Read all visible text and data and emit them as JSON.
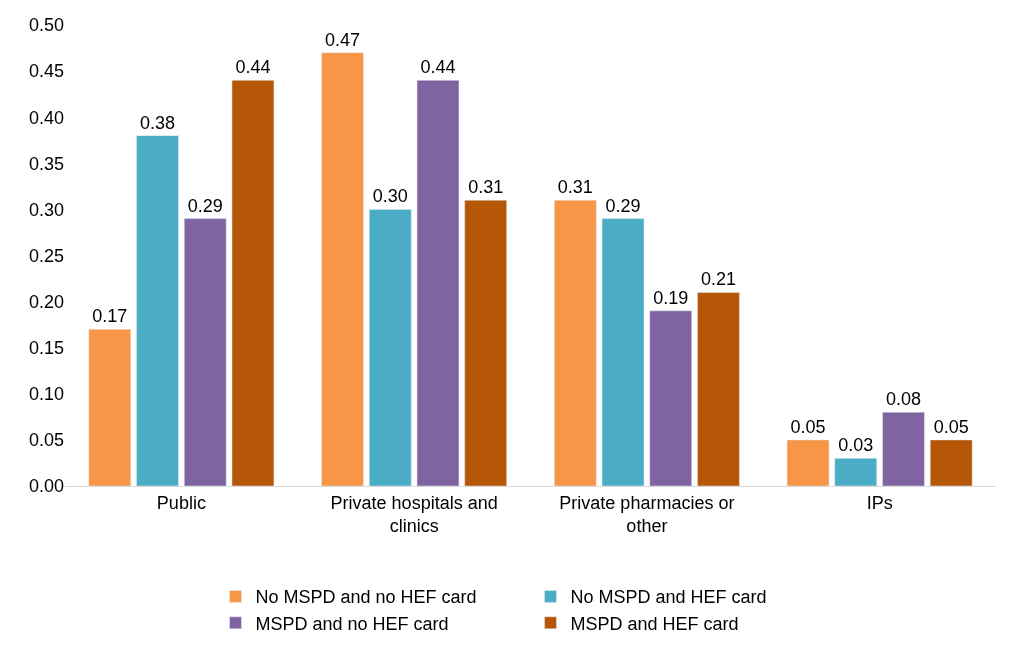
{
  "chart_data": {
    "type": "bar",
    "categories": [
      "Public",
      "Private hospitals and clinics",
      "Private pharmacies or other",
      "IPs"
    ],
    "series": [
      {
        "name": "No MSPD and no HEF card",
        "color": "#f79646",
        "values": [
          0.17,
          0.47,
          0.31,
          0.05
        ],
        "value_labels": [
          "0.17",
          "0.47",
          "0.31",
          "0.05"
        ]
      },
      {
        "name": "No MSPD and HEF card",
        "color": "#4bacc6",
        "values": [
          0.38,
          0.3,
          0.29,
          0.03
        ],
        "value_labels": [
          "0.38",
          "0.30",
          "0.29",
          "0.03"
        ]
      },
      {
        "name": "MSPD and no HEF card",
        "color": "#8064a2",
        "values": [
          0.29,
          0.44,
          0.19,
          0.08
        ],
        "value_labels": [
          "0.29",
          "0.44",
          "0.19",
          "0.08"
        ]
      },
      {
        "name": "MSPD and HEF card",
        "color": "#b65708",
        "values": [
          0.44,
          0.31,
          0.21,
          0.05
        ],
        "value_labels": [
          "0.44",
          "0.31",
          "0.21",
          "0.05"
        ]
      }
    ],
    "ylim": [
      0,
      0.5
    ],
    "yticks": [
      {
        "value": 0,
        "label": "0.00"
      },
      {
        "value": 0.05,
        "label": "0.05"
      },
      {
        "value": 0.1,
        "label": "0.10"
      },
      {
        "value": 0.15,
        "label": "0.15"
      },
      {
        "value": 0.2,
        "label": "0.20"
      },
      {
        "value": 0.25,
        "label": "0.25"
      },
      {
        "value": 0.3,
        "label": "0.30"
      },
      {
        "value": 0.35,
        "label": "0.35"
      },
      {
        "value": 0.4,
        "label": "0.40"
      },
      {
        "value": 0.45,
        "label": "0.45"
      },
      {
        "value": 0.5,
        "label": "0.50"
      }
    ],
    "legend": "bottom"
  }
}
